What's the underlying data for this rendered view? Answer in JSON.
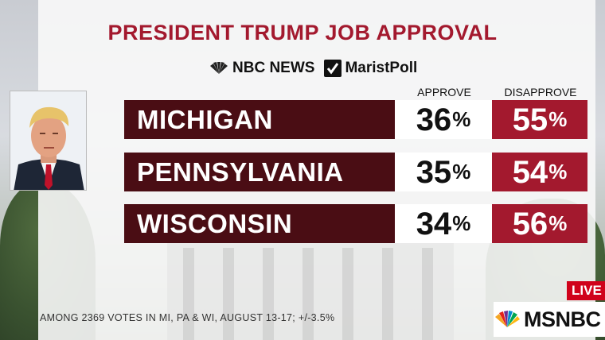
{
  "title": "PRESIDENT TRUMP JOB APPROVAL",
  "brands": {
    "nbc": "NBC NEWS",
    "marist": "MaristPoll"
  },
  "columns": {
    "approve": "APPROVE",
    "disapprove": "DISAPPROVE"
  },
  "percent_sign": "%",
  "rows": [
    {
      "state": "MICHIGAN",
      "approve": "36",
      "disapprove": "55"
    },
    {
      "state": "PENNSYLVANIA",
      "approve": "35",
      "disapprove": "54"
    },
    {
      "state": "WISCONSIN",
      "approve": "34",
      "disapprove": "56"
    }
  ],
  "footnote": "AMONG 2369 VOTES IN MI, PA & WI, AUGUST 13-17; +/-3.5%",
  "network": {
    "live": "LIVE",
    "name": "MSNBC"
  },
  "colors": {
    "title_red": "#a3192e",
    "state_bar": "#4a0d14",
    "disapprove_bg": "#a3192e",
    "live_red": "#d0021b"
  },
  "icons": [
    "nbc-peacock-icon",
    "check-icon",
    "msnbc-peacock-icon"
  ]
}
